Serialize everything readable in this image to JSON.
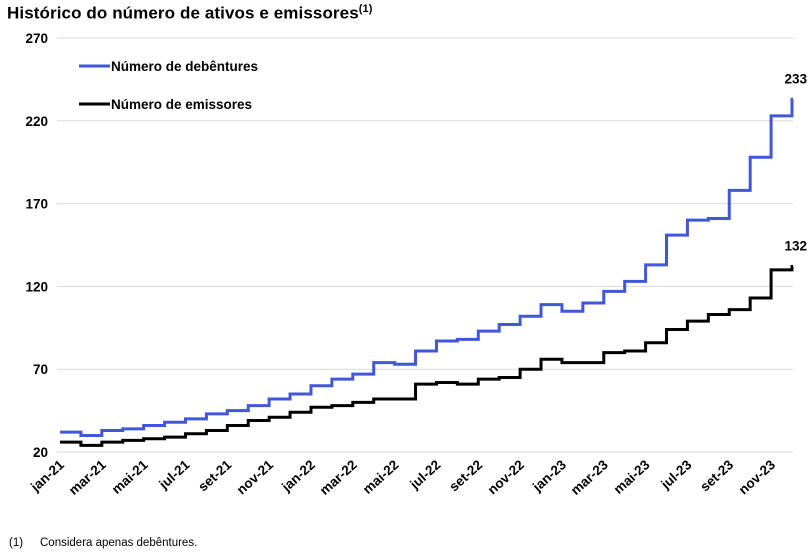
{
  "title": {
    "text": "Histórico do número de ativos e emissores",
    "superscript": "(1)"
  },
  "legend": {
    "position": "top-left-inside",
    "items": [
      {
        "label": "Número de debêntures",
        "color": "#4157D9"
      },
      {
        "label": "Número de emissores",
        "color": "#000000"
      }
    ]
  },
  "footnote": {
    "marker": "(1)",
    "text": "Considera apenas debêntures."
  },
  "colors": {
    "accent_blue": "#4157D9",
    "series_black": "#000000",
    "grid": "#D9D9D9",
    "text": "#000000",
    "background": "#FFFFFF"
  },
  "chart_data": {
    "type": "line",
    "line_style": "step",
    "title": "Histórico do número de ativos e emissores (1)",
    "xlabel": "",
    "ylabel": "",
    "grid": "horizontal",
    "legend_position": "top-left-inside",
    "ylim": [
      20,
      270
    ],
    "y_ticks": [
      20,
      70,
      120,
      170,
      220,
      270
    ],
    "x": [
      "jan-21",
      "fev-21",
      "mar-21",
      "abr-21",
      "mai-21",
      "jun-21",
      "jul-21",
      "ago-21",
      "set-21",
      "out-21",
      "nov-21",
      "dez-21",
      "jan-22",
      "fev-22",
      "mar-22",
      "abr-22",
      "mai-22",
      "jun-22",
      "jul-22",
      "ago-22",
      "set-22",
      "out-22",
      "nov-22",
      "dez-22",
      "jan-23",
      "fev-23",
      "mar-23",
      "abr-23",
      "mai-23",
      "jun-23",
      "jul-23",
      "ago-23",
      "set-23",
      "out-23",
      "nov-23",
      "dez-23"
    ],
    "x_tick_labels": [
      "jan-21",
      "mar-21",
      "mai-21",
      "jul-21",
      "set-21",
      "nov-21",
      "jan-22",
      "mar-22",
      "mai-22",
      "jul-22",
      "set-22",
      "nov-22",
      "jan-23",
      "mar-23",
      "mai-23",
      "jul-23",
      "set-23",
      "nov-23"
    ],
    "series": [
      {
        "name": "Número de debêntures",
        "color": "#4157D9",
        "end_label": "233",
        "values": [
          32,
          30,
          33,
          34,
          36,
          38,
          40,
          43,
          45,
          48,
          52,
          55,
          60,
          64,
          67,
          74,
          73,
          81,
          87,
          88,
          93,
          97,
          102,
          109,
          105,
          110,
          117,
          123,
          133,
          151,
          160,
          161,
          178,
          198,
          223,
          233
        ]
      },
      {
        "name": "Número de emissores",
        "color": "#000000",
        "end_label": "132",
        "values": [
          26,
          24,
          26,
          27,
          28,
          29,
          31,
          33,
          36,
          39,
          41,
          44,
          47,
          48,
          50,
          52,
          52,
          61,
          62,
          61,
          64,
          65,
          70,
          76,
          74,
          74,
          80,
          81,
          86,
          94,
          99,
          103,
          106,
          113,
          130,
          132
        ]
      }
    ]
  }
}
